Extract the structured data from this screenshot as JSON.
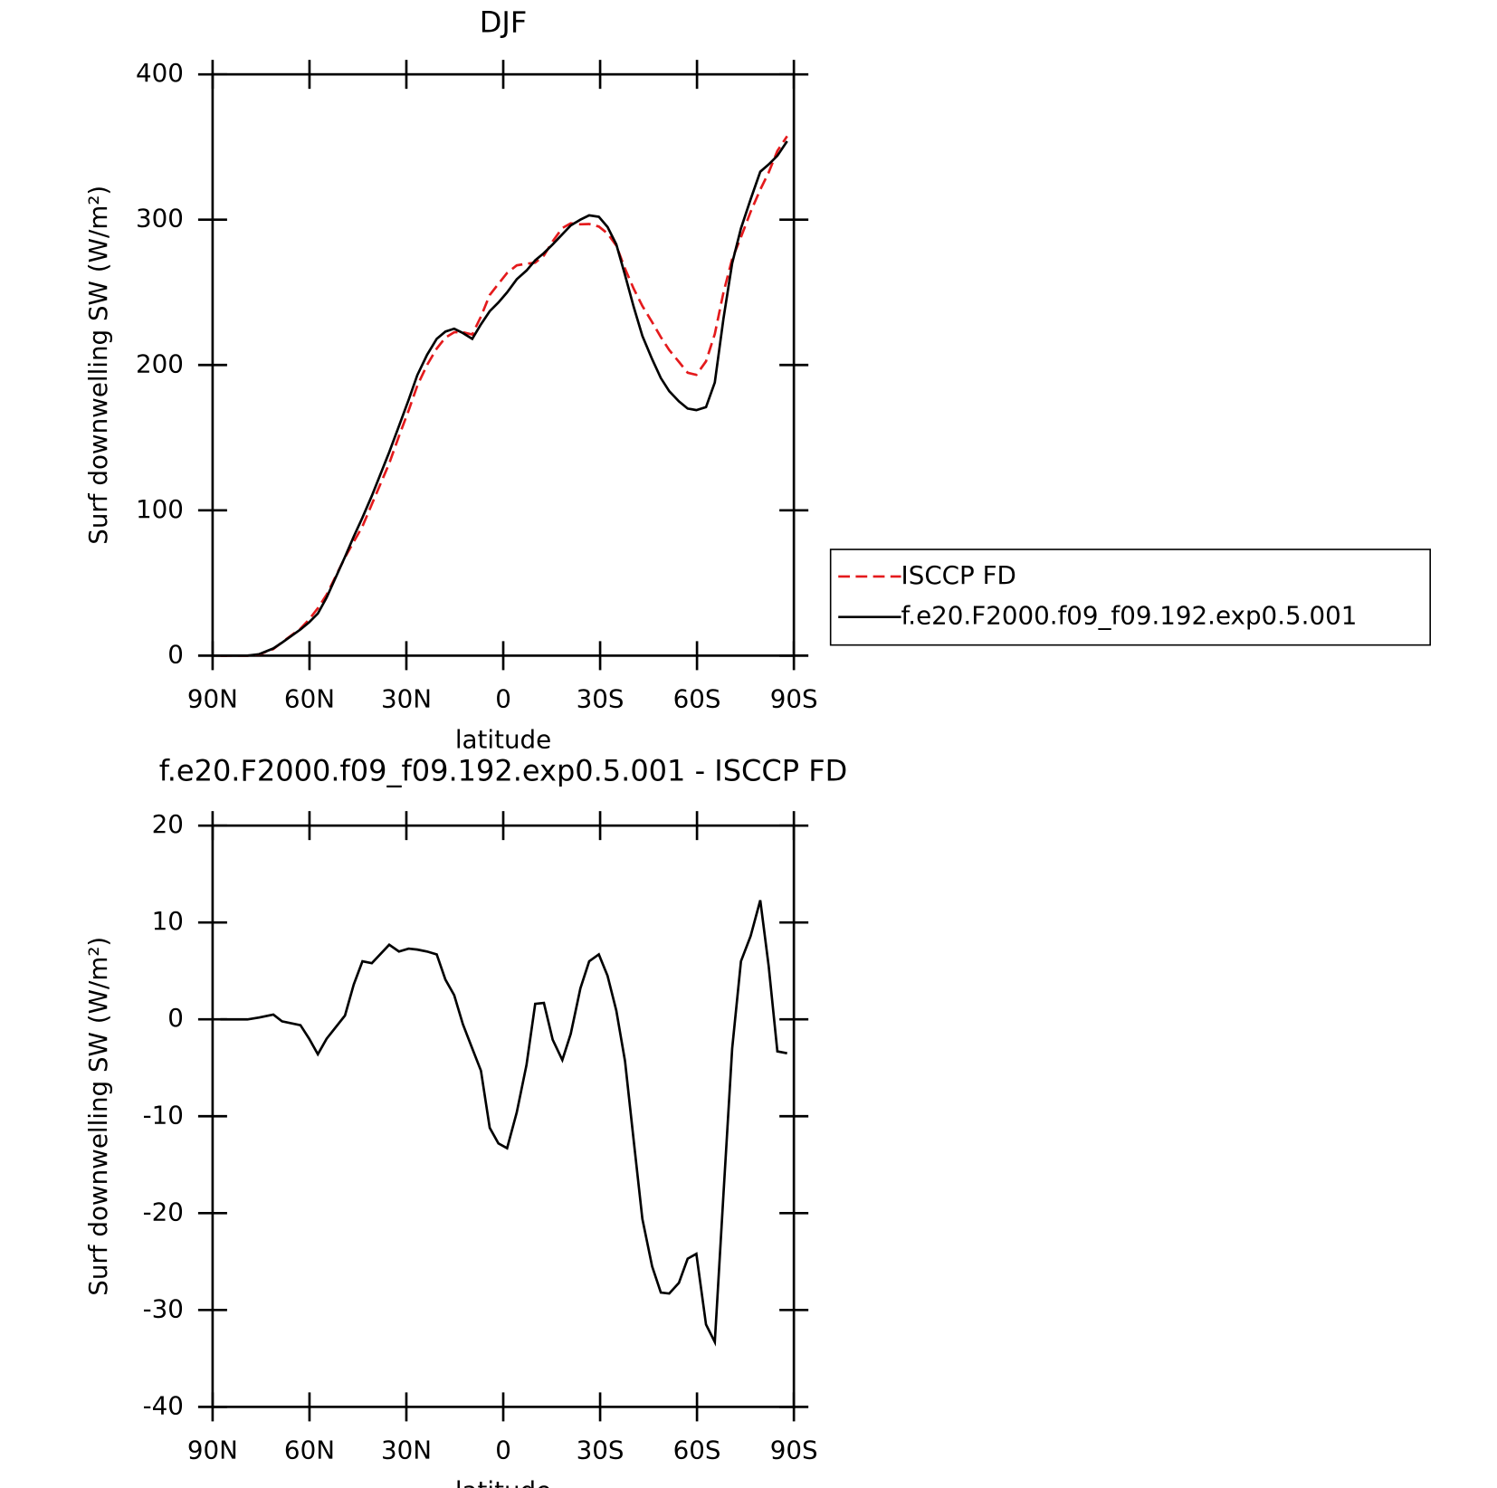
{
  "chart_data": [
    {
      "type": "line",
      "title": "DJF",
      "xlabel": "latitude",
      "ylabel": "Surf downwelling SW (W/m²)",
      "x": [
        87.6,
        79.2,
        75.6,
        71.2,
        68.5,
        62.8,
        60.1,
        57.4,
        54.7,
        49.0,
        46.3,
        43.6,
        40.7,
        35.3,
        32.3,
        29.3,
        26.6,
        23.6,
        20.6,
        17.9,
        15.2,
        12.5,
        9.6,
        6.9,
        4.2,
        1.5,
        -1.2,
        -4.2,
        -7.2,
        -9.9,
        -12.6,
        -15.3,
        -18.3,
        -20.9,
        -23.9,
        -26.6,
        -29.6,
        -32.3,
        -35,
        -37.7,
        -40.4,
        -43.1,
        -46.1,
        -48.8,
        -51.4,
        -54.4,
        -57.1,
        -59.8,
        -62.8,
        -65.5,
        -68.2,
        -70.9,
        -73.6,
        -76.6,
        -79.6,
        -82.2,
        -84.9,
        -87.9
      ],
      "series": [
        {
          "name": "ISCCP FD",
          "color": "#e41a1c",
          "style": "dashed",
          "values": [
            0,
            0,
            0.8,
            4.5,
            9.2,
            18.6,
            25,
            32.6,
            42,
            67.6,
            78.4,
            89,
            104.2,
            132.3,
            151,
            168.7,
            185.8,
            200,
            211.3,
            218.9,
            222.5,
            222.5,
            221,
            233.3,
            248.2,
            255.8,
            263.3,
            268.6,
            269.7,
            270.4,
            275.3,
            285.1,
            294.2,
            297.5,
            296.8,
            297,
            295.3,
            290.5,
            282.1,
            266.3,
            252.5,
            240.6,
            229.5,
            219.2,
            210.3,
            202.2,
            194.7,
            193.2,
            202.5,
            221.3,
            250,
            273,
            288,
            305.4,
            320.7,
            332.5,
            347.3,
            357.5
          ]
        },
        {
          "name": "f.e20.F2000.f09_f09.192.exp0.5.001",
          "color": "#000000",
          "style": "solid",
          "values": [
            0,
            0,
            1,
            5,
            9,
            18,
            23,
            29,
            40,
            68,
            82,
            95,
            110,
            140,
            158,
            176,
            193,
            207,
            218,
            223,
            225,
            222,
            218,
            228,
            237,
            243,
            250,
            259,
            265,
            272,
            277,
            283,
            290,
            296,
            300,
            303,
            302,
            295,
            283,
            262,
            240,
            220,
            204,
            191,
            182,
            175,
            170,
            169,
            171,
            188,
            232,
            270,
            294,
            314,
            333,
            338,
            344,
            354
          ]
        }
      ],
      "xlim": [
        90,
        -90
      ],
      "xticks": [
        {
          "value": 90,
          "label": "90N"
        },
        {
          "value": 60,
          "label": "60N"
        },
        {
          "value": 30,
          "label": "30N"
        },
        0,
        {
          "value": -30,
          "label": "30S"
        },
        {
          "value": -60,
          "label": "60S"
        },
        {
          "value": -90,
          "label": "90S"
        }
      ],
      "ylim": [
        0,
        400
      ],
      "yticks": [
        0,
        100,
        200,
        300,
        400
      ],
      "legend": "right"
    },
    {
      "type": "line",
      "title": "f.e20.F2000.f09_f09.192.exp0.5.001 - ISCCP FD",
      "xlabel": "latitude",
      "ylabel": "Surf downwelling SW (W/m²)",
      "x": [
        87.6,
        79.2,
        75.6,
        71.2,
        68.5,
        62.8,
        60.1,
        57.4,
        54.7,
        49.0,
        46.3,
        43.6,
        40.7,
        35.3,
        32.3,
        29.3,
        26.6,
        23.6,
        20.6,
        17.9,
        15.2,
        12.5,
        9.6,
        6.9,
        4.2,
        1.5,
        -1.2,
        -4.2,
        -7.2,
        -9.9,
        -12.6,
        -15.3,
        -18.3,
        -20.9,
        -23.9,
        -26.6,
        -29.6,
        -32.3,
        -35,
        -37.7,
        -40.4,
        -43.1,
        -46.1,
        -48.8,
        -51.4,
        -54.4,
        -57.1,
        -59.8,
        -62.8,
        -65.5,
        -68.2,
        -70.9,
        -73.6,
        -76.6,
        -79.6,
        -82.2,
        -84.9,
        -87.9
      ],
      "series": [
        {
          "color": "#000000",
          "style": "solid",
          "values": [
            0,
            0,
            0.2,
            0.5,
            -0.2,
            -0.6,
            -2,
            -3.6,
            -2,
            0.4,
            3.6,
            6,
            5.8,
            7.7,
            7,
            7.3,
            7.2,
            7,
            6.7,
            4.1,
            2.5,
            -0.5,
            -3,
            -5.3,
            -11.2,
            -12.8,
            -13.3,
            -9.6,
            -4.7,
            1.6,
            1.7,
            -2.1,
            -4.2,
            -1.5,
            3.2,
            6,
            6.7,
            4.5,
            0.9,
            -4.3,
            -12.5,
            -20.6,
            -25.5,
            -28.2,
            -28.3,
            -27.2,
            -24.7,
            -24.2,
            -31.5,
            -33.3,
            -18,
            -3,
            6,
            8.6,
            12.3,
            5.5,
            -3.3,
            -3.5
          ]
        }
      ],
      "xlim": [
        90,
        -90
      ],
      "xticks": [
        {
          "value": 90,
          "label": "90N"
        },
        {
          "value": 60,
          "label": "60N"
        },
        {
          "value": 30,
          "label": "30N"
        },
        0,
        {
          "value": -30,
          "label": "30S"
        },
        {
          "value": -60,
          "label": "60S"
        },
        {
          "value": -90,
          "label": "90S"
        }
      ],
      "ylim": [
        -40,
        20
      ],
      "yticks": [
        -40,
        -30,
        -20,
        -10,
        0,
        10,
        20
      ]
    }
  ]
}
